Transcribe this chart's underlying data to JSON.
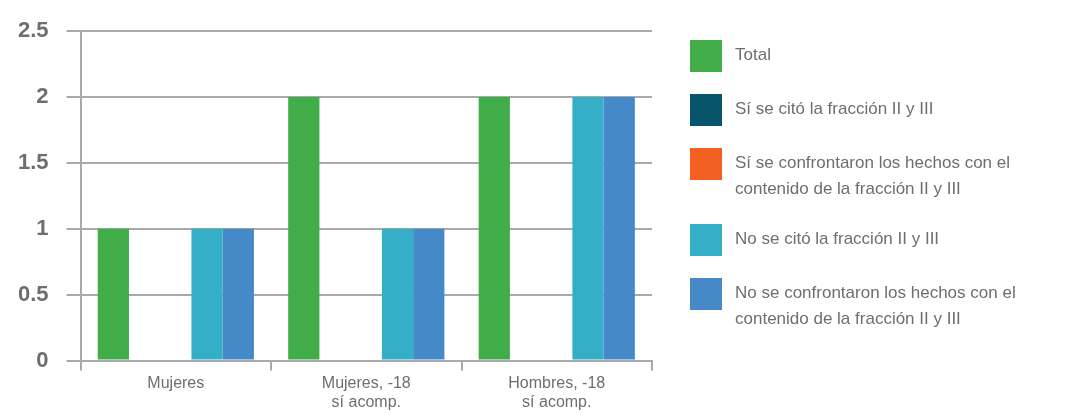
{
  "chart_data": {
    "type": "bar",
    "categories": [
      "Mujeres",
      "Mujeres, -18 sí acomp.",
      "Hombres, -18 sí acomp."
    ],
    "series": [
      {
        "name": "Total",
        "color": "#41ad49",
        "values": [
          1,
          2,
          2
        ]
      },
      {
        "name": "Sí se citó la fracción II y III",
        "color": "#08546c",
        "values": [
          0,
          0,
          0
        ]
      },
      {
        "name": "Sí se confrontaron los hechos con el contenido de la fracción II y III",
        "color": "#f26122",
        "values": [
          0,
          0,
          0
        ]
      },
      {
        "name": "No se citó la fracción II y III",
        "color": "#35afc8",
        "values": [
          1,
          1,
          2
        ]
      },
      {
        "name": "No se confrontaron los hechos con el contenido de la fracción II y III",
        "color": "#4689c8",
        "values": [
          1,
          1,
          2
        ]
      }
    ],
    "ylim": [
      0,
      2.5
    ],
    "yticks": [
      0,
      0.5,
      1,
      1.5,
      2,
      2.5
    ],
    "grid": "y",
    "legend": "right"
  }
}
